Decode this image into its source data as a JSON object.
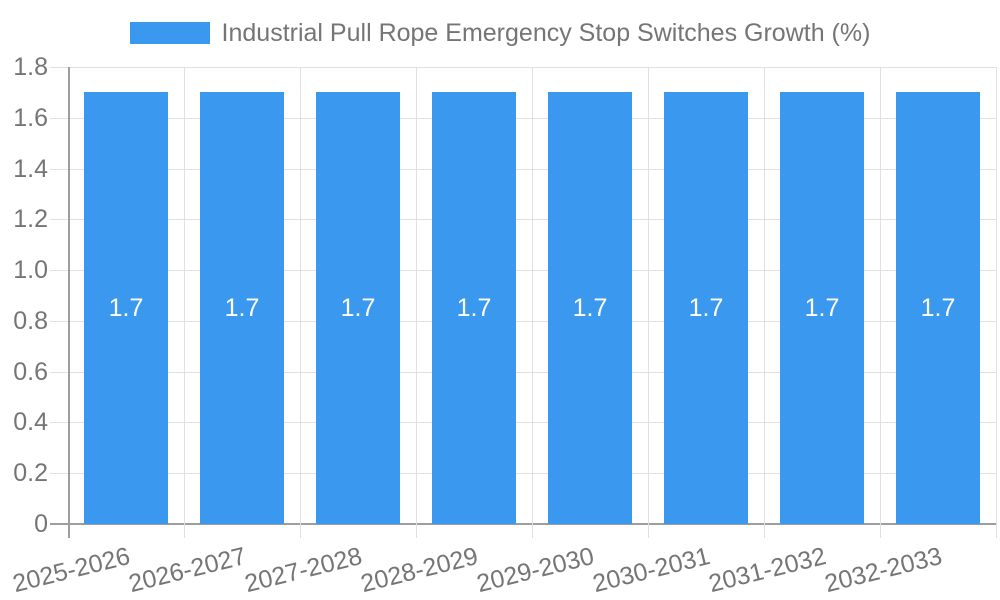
{
  "chart_data": {
    "type": "bar",
    "title": "Industrial Pull Rope Emergency Stop Switches Growth (%)",
    "legend_position": "top",
    "categories": [
      "2025-2026",
      "2026-2027",
      "2027-2028",
      "2028-2029",
      "2029-2030",
      "2030-2031",
      "2031-2032",
      "2032-2033"
    ],
    "values": [
      1.7,
      1.7,
      1.7,
      1.7,
      1.7,
      1.7,
      1.7,
      1.7
    ],
    "value_labels": [
      "1.7",
      "1.7",
      "1.7",
      "1.7",
      "1.7",
      "1.7",
      "1.7",
      "1.7"
    ],
    "xlabel": "",
    "ylabel": "",
    "ylim": [
      0,
      1.8
    ],
    "ytick_labels": [
      "0",
      "0.2",
      "0.4",
      "0.6",
      "0.8",
      "1.0",
      "1.2",
      "1.4",
      "1.6",
      "1.8"
    ],
    "grid": "on",
    "colors": {
      "bar": "#3A99EE",
      "grid_line": "#E0E0E0",
      "axis_line": "#9E9E9E",
      "tick_text": "#757575",
      "value_text": "#FFFFFF",
      "background": "#FFFFFF"
    }
  }
}
